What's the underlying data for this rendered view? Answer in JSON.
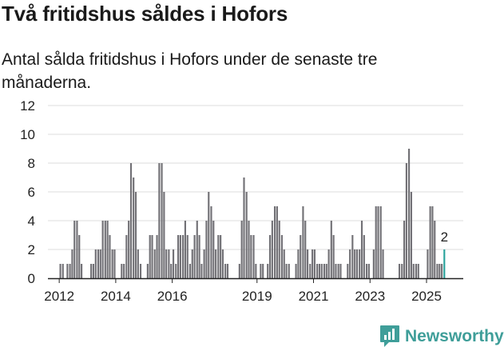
{
  "title": "Två fritidshus såldes i Hofors",
  "subtitle": "Antal sålda fritidshus i Hofors under de senaste tre månaderna.",
  "brand": {
    "name": "Newsworthy",
    "icon": "newsworthy-logo-icon"
  },
  "colors": {
    "bar": "#727176",
    "highlight": "#2aa39c",
    "grid": "#dddddd",
    "axis": "#222222",
    "brand": "#3f9e99"
  },
  "chart_data": {
    "type": "bar",
    "title": "Två fritidshus såldes i Hofors",
    "ylabel": "",
    "xlabel": "",
    "ylim": [
      0,
      12
    ],
    "yticks": [
      0,
      2,
      4,
      6,
      8,
      10,
      12
    ],
    "xticks": [
      2012,
      2014,
      2016,
      2019,
      2021,
      2023,
      2025
    ],
    "xlim": [
      2011.6,
      2026.3
    ],
    "annotation": {
      "label": "2",
      "value": 2
    },
    "points": [
      {
        "x": 2012.04,
        "value": 1
      },
      {
        "x": 2012.13,
        "value": 1
      },
      {
        "x": 2012.29,
        "value": 1
      },
      {
        "x": 2012.38,
        "value": 1
      },
      {
        "x": 2012.46,
        "value": 2
      },
      {
        "x": 2012.54,
        "value": 4
      },
      {
        "x": 2012.63,
        "value": 4
      },
      {
        "x": 2012.71,
        "value": 3
      },
      {
        "x": 2012.79,
        "value": 1
      },
      {
        "x": 2013.13,
        "value": 1
      },
      {
        "x": 2013.21,
        "value": 1
      },
      {
        "x": 2013.29,
        "value": 2
      },
      {
        "x": 2013.38,
        "value": 2
      },
      {
        "x": 2013.46,
        "value": 2
      },
      {
        "x": 2013.54,
        "value": 4
      },
      {
        "x": 2013.63,
        "value": 4
      },
      {
        "x": 2013.71,
        "value": 4
      },
      {
        "x": 2013.79,
        "value": 3
      },
      {
        "x": 2013.88,
        "value": 2
      },
      {
        "x": 2013.96,
        "value": 2
      },
      {
        "x": 2014.21,
        "value": 1
      },
      {
        "x": 2014.29,
        "value": 1
      },
      {
        "x": 2014.38,
        "value": 3
      },
      {
        "x": 2014.46,
        "value": 4
      },
      {
        "x": 2014.54,
        "value": 8
      },
      {
        "x": 2014.63,
        "value": 7
      },
      {
        "x": 2014.71,
        "value": 6
      },
      {
        "x": 2014.79,
        "value": 2
      },
      {
        "x": 2014.88,
        "value": 1
      },
      {
        "x": 2015.13,
        "value": 1
      },
      {
        "x": 2015.21,
        "value": 3
      },
      {
        "x": 2015.29,
        "value": 3
      },
      {
        "x": 2015.38,
        "value": 2
      },
      {
        "x": 2015.46,
        "value": 3
      },
      {
        "x": 2015.54,
        "value": 8
      },
      {
        "x": 2015.63,
        "value": 8
      },
      {
        "x": 2015.71,
        "value": 6
      },
      {
        "x": 2015.79,
        "value": 2
      },
      {
        "x": 2015.88,
        "value": 2
      },
      {
        "x": 2015.96,
        "value": 1
      },
      {
        "x": 2016.04,
        "value": 2
      },
      {
        "x": 2016.13,
        "value": 1
      },
      {
        "x": 2016.21,
        "value": 3
      },
      {
        "x": 2016.29,
        "value": 3
      },
      {
        "x": 2016.38,
        "value": 3
      },
      {
        "x": 2016.46,
        "value": 4
      },
      {
        "x": 2016.54,
        "value": 3
      },
      {
        "x": 2016.63,
        "value": 1
      },
      {
        "x": 2016.71,
        "value": 2
      },
      {
        "x": 2016.79,
        "value": 3
      },
      {
        "x": 2016.88,
        "value": 4
      },
      {
        "x": 2016.96,
        "value": 3
      },
      {
        "x": 2017.04,
        "value": 1
      },
      {
        "x": 2017.13,
        "value": 2
      },
      {
        "x": 2017.21,
        "value": 4
      },
      {
        "x": 2017.29,
        "value": 6
      },
      {
        "x": 2017.38,
        "value": 5
      },
      {
        "x": 2017.46,
        "value": 4
      },
      {
        "x": 2017.54,
        "value": 2
      },
      {
        "x": 2017.63,
        "value": 3
      },
      {
        "x": 2017.71,
        "value": 3
      },
      {
        "x": 2017.79,
        "value": 2
      },
      {
        "x": 2017.88,
        "value": 1
      },
      {
        "x": 2017.96,
        "value": 1
      },
      {
        "x": 2018.38,
        "value": 1
      },
      {
        "x": 2018.46,
        "value": 4
      },
      {
        "x": 2018.54,
        "value": 7
      },
      {
        "x": 2018.63,
        "value": 6
      },
      {
        "x": 2018.71,
        "value": 4
      },
      {
        "x": 2018.79,
        "value": 3
      },
      {
        "x": 2018.88,
        "value": 3
      },
      {
        "x": 2018.96,
        "value": 1
      },
      {
        "x": 2019.13,
        "value": 1
      },
      {
        "x": 2019.21,
        "value": 1
      },
      {
        "x": 2019.38,
        "value": 1
      },
      {
        "x": 2019.46,
        "value": 3
      },
      {
        "x": 2019.54,
        "value": 4
      },
      {
        "x": 2019.63,
        "value": 5
      },
      {
        "x": 2019.71,
        "value": 5
      },
      {
        "x": 2019.79,
        "value": 4
      },
      {
        "x": 2019.88,
        "value": 3
      },
      {
        "x": 2019.96,
        "value": 2
      },
      {
        "x": 2020.04,
        "value": 1
      },
      {
        "x": 2020.13,
        "value": 1
      },
      {
        "x": 2020.38,
        "value": 1
      },
      {
        "x": 2020.46,
        "value": 2
      },
      {
        "x": 2020.54,
        "value": 3
      },
      {
        "x": 2020.63,
        "value": 5
      },
      {
        "x": 2020.71,
        "value": 4
      },
      {
        "x": 2020.79,
        "value": 2
      },
      {
        "x": 2020.88,
        "value": 1
      },
      {
        "x": 2020.96,
        "value": 2
      },
      {
        "x": 2021.04,
        "value": 2
      },
      {
        "x": 2021.13,
        "value": 1
      },
      {
        "x": 2021.21,
        "value": 1
      },
      {
        "x": 2021.29,
        "value": 1
      },
      {
        "x": 2021.38,
        "value": 1
      },
      {
        "x": 2021.46,
        "value": 1
      },
      {
        "x": 2021.54,
        "value": 2
      },
      {
        "x": 2021.63,
        "value": 4
      },
      {
        "x": 2021.71,
        "value": 3
      },
      {
        "x": 2021.79,
        "value": 1
      },
      {
        "x": 2021.88,
        "value": 1
      },
      {
        "x": 2021.96,
        "value": 1
      },
      {
        "x": 2022.21,
        "value": 1
      },
      {
        "x": 2022.29,
        "value": 2
      },
      {
        "x": 2022.38,
        "value": 3
      },
      {
        "x": 2022.46,
        "value": 2
      },
      {
        "x": 2022.54,
        "value": 2
      },
      {
        "x": 2022.63,
        "value": 2
      },
      {
        "x": 2022.71,
        "value": 4
      },
      {
        "x": 2022.79,
        "value": 3
      },
      {
        "x": 2022.88,
        "value": 1
      },
      {
        "x": 2022.96,
        "value": 1
      },
      {
        "x": 2023.13,
        "value": 2
      },
      {
        "x": 2023.21,
        "value": 5
      },
      {
        "x": 2023.29,
        "value": 5
      },
      {
        "x": 2023.38,
        "value": 5
      },
      {
        "x": 2023.46,
        "value": 2
      },
      {
        "x": 2024.04,
        "value": 1
      },
      {
        "x": 2024.13,
        "value": 1
      },
      {
        "x": 2024.21,
        "value": 4
      },
      {
        "x": 2024.29,
        "value": 8
      },
      {
        "x": 2024.38,
        "value": 9
      },
      {
        "x": 2024.46,
        "value": 6
      },
      {
        "x": 2024.54,
        "value": 1
      },
      {
        "x": 2024.63,
        "value": 1
      },
      {
        "x": 2024.71,
        "value": 1
      },
      {
        "x": 2025.04,
        "value": 2
      },
      {
        "x": 2025.13,
        "value": 5
      },
      {
        "x": 2025.21,
        "value": 5
      },
      {
        "x": 2025.29,
        "value": 4
      },
      {
        "x": 2025.38,
        "value": 1
      },
      {
        "x": 2025.46,
        "value": 1
      },
      {
        "x": 2025.54,
        "value": 1
      },
      {
        "x": 2025.63,
        "value": 2,
        "highlight": true
      }
    ]
  }
}
